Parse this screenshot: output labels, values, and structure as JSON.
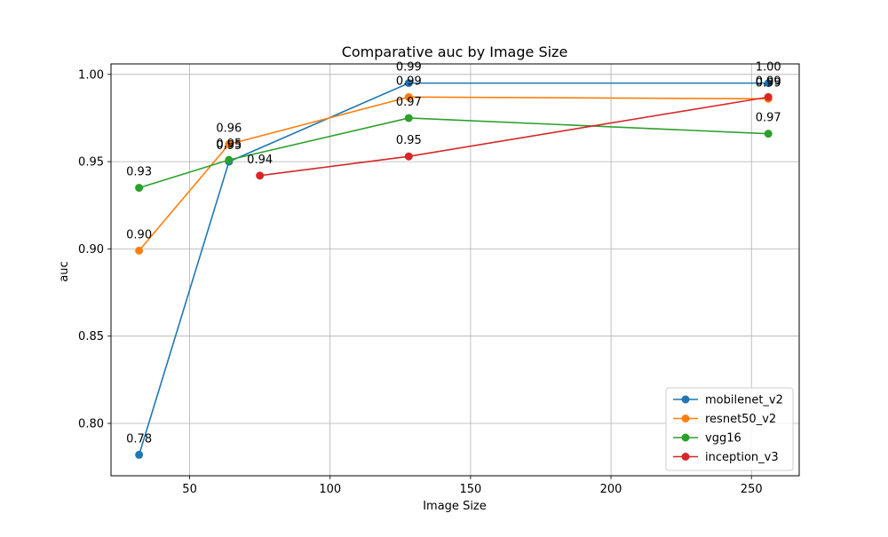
{
  "chart_data": {
    "type": "line",
    "title": "Comparative auc by Image Size",
    "xlabel": "Image Size",
    "ylabel": "auc",
    "xlim": [
      22,
      267
    ],
    "ylim": [
      0.77,
      1.006
    ],
    "xticks": [
      50,
      100,
      150,
      200,
      250
    ],
    "yticks": [
      0.8,
      0.85,
      0.9,
      0.95,
      1.0
    ],
    "xtick_labels": [
      "50",
      "100",
      "150",
      "200",
      "250"
    ],
    "ytick_labels": [
      "0.80",
      "0.85",
      "0.90",
      "0.95",
      "1.00"
    ],
    "grid": true,
    "legend_position": "lower-right",
    "series": [
      {
        "name": "mobilenet_v2",
        "color": "#1f77b4",
        "x": [
          32,
          64,
          128,
          256
        ],
        "y": [
          0.782,
          0.95,
          0.995,
          0.995
        ],
        "labels": [
          "0.78",
          "0.95",
          "0.99",
          "1.00"
        ]
      },
      {
        "name": "resnet50_v2",
        "color": "#ff7f0e",
        "x": [
          32,
          64,
          128,
          256
        ],
        "y": [
          0.899,
          0.96,
          0.987,
          0.986
        ],
        "labels": [
          "0.90",
          "0.96",
          "0.99",
          "0.99"
        ]
      },
      {
        "name": "vgg16",
        "color": "#2ca02c",
        "x": [
          32,
          64,
          128,
          256
        ],
        "y": [
          0.935,
          0.951,
          0.975,
          0.966
        ],
        "labels": [
          "0.93",
          "0.95",
          "0.97",
          "0.97"
        ]
      },
      {
        "name": "inception_v3",
        "color": "#d62728",
        "x": [
          75,
          128,
          256
        ],
        "y": [
          0.942,
          0.953,
          0.987
        ],
        "labels": [
          "0.94",
          "0.95",
          "0.99"
        ]
      }
    ]
  }
}
